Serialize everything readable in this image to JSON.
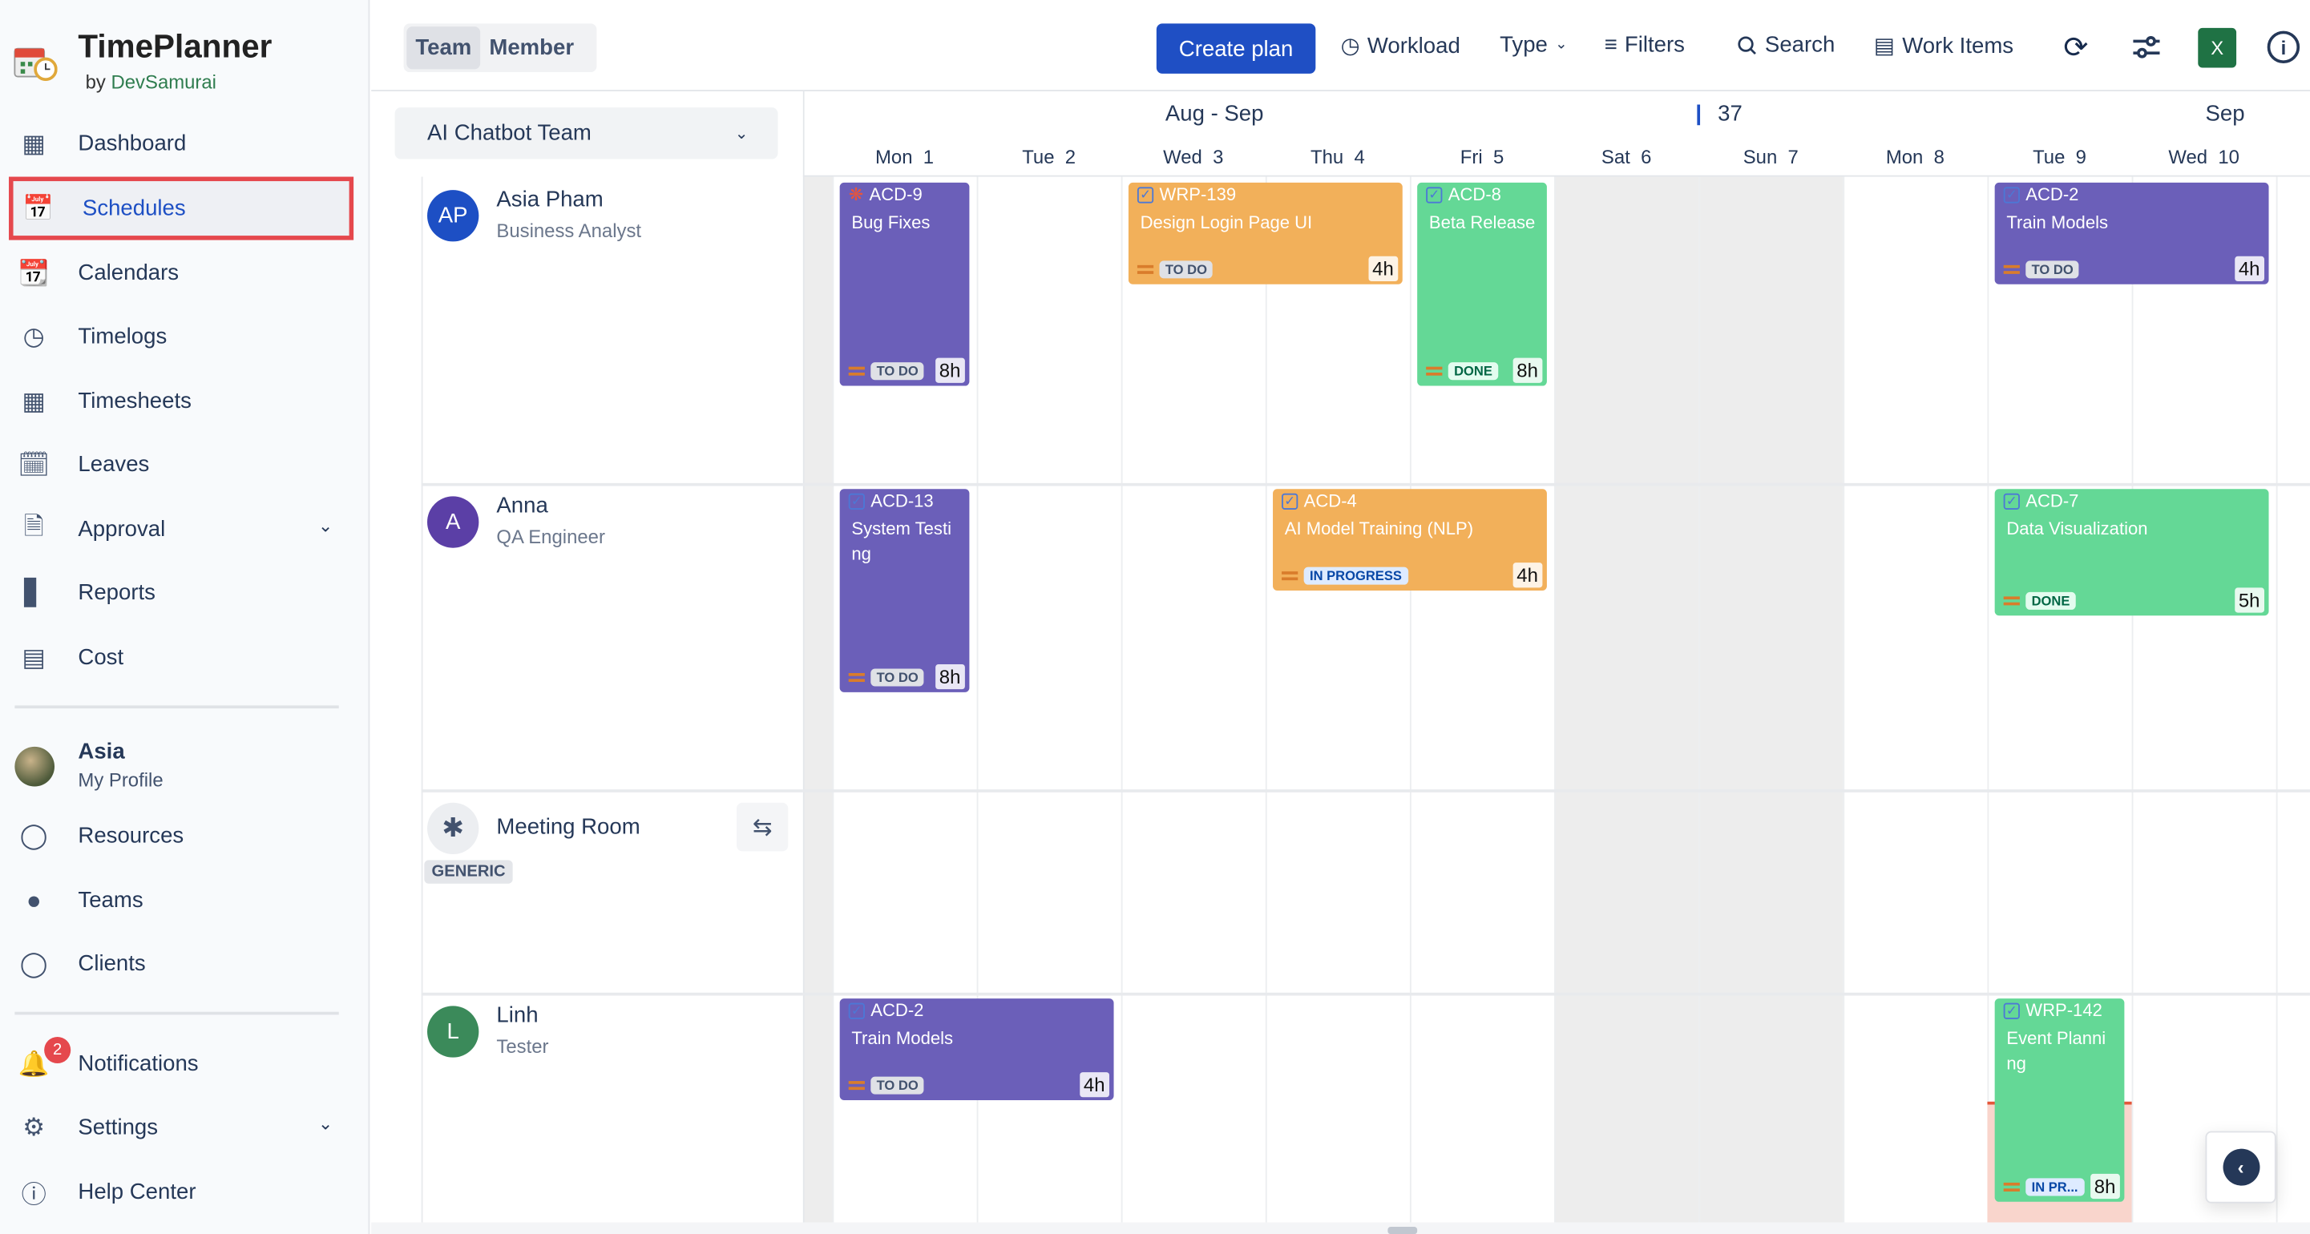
{
  "app": {
    "title": "TimePlanner",
    "by": "by",
    "vendor": "DevSamurai"
  },
  "sidebar": {
    "items": [
      {
        "label": "Dashboard",
        "icon": "dashboard-icon"
      },
      {
        "label": "Schedules",
        "icon": "schedule-icon",
        "active": true
      },
      {
        "label": "Calendars",
        "icon": "calendar-check-icon"
      },
      {
        "label": "Timelogs",
        "icon": "clock-icon"
      },
      {
        "label": "Timesheets",
        "icon": "grid-icon"
      },
      {
        "label": "Leaves",
        "icon": "calendar-minus-icon"
      },
      {
        "label": "Approval",
        "icon": "document-icon",
        "expandable": true
      },
      {
        "label": "Reports",
        "icon": "bar-chart-icon"
      },
      {
        "label": "Cost",
        "icon": "money-icon"
      }
    ],
    "profile": {
      "name": "Asia",
      "sub": "My Profile"
    },
    "items2": [
      {
        "label": "Resources",
        "icon": "person-icon"
      },
      {
        "label": "Teams",
        "icon": "group-icon"
      },
      {
        "label": "Clients",
        "icon": "client-icon"
      }
    ],
    "items3": [
      {
        "label": "Notifications",
        "icon": "bell-icon",
        "badge": "2"
      },
      {
        "label": "Settings",
        "icon": "gear-icon",
        "expandable": true
      },
      {
        "label": "Help Center",
        "icon": "help-icon"
      }
    ]
  },
  "toolbar": {
    "view_toggle": [
      "Team",
      "Member"
    ],
    "active_view": "Team",
    "create": "Create plan",
    "workload": "Workload",
    "type": "Type",
    "filters": "Filters",
    "search": "Search",
    "work_items": "Work Items",
    "excel_color": "#1f7244"
  },
  "team_select": {
    "value": "AI Chatbot Team"
  },
  "calendar": {
    "range_label": "Aug - Sep",
    "week_label": "37",
    "month_right": "Sep",
    "days": [
      {
        "label": "Mon  1",
        "weekend": false
      },
      {
        "label": "Tue  2",
        "weekend": false
      },
      {
        "label": "Wed  3",
        "weekend": false
      },
      {
        "label": "Thu  4",
        "weekend": false
      },
      {
        "label": "Fri  5",
        "weekend": false
      },
      {
        "label": "Sat  6",
        "weekend": true
      },
      {
        "label": "Sun  7",
        "weekend": true
      },
      {
        "label": "Mon  8",
        "weekend": false
      },
      {
        "label": "Tue  9",
        "weekend": false
      },
      {
        "label": "Wed  10",
        "weekend": false
      }
    ]
  },
  "resources": [
    {
      "name": "Asia Pham",
      "role": "Business Analyst",
      "initials": "AP",
      "color": "#1d4fc4"
    },
    {
      "name": "Anna",
      "role": "QA Engineer",
      "initials": "A",
      "color": "#5b3fa6"
    },
    {
      "name": "Meeting Room",
      "role": "",
      "tag": "GENERIC",
      "icon": "puzzle-icon",
      "action_icon": "shuffle-icon"
    },
    {
      "name": "Linh",
      "role": "Tester",
      "initials": "L",
      "color": "#3b8a5a"
    }
  ],
  "status_colors": {
    "TO DO": [
      "#dfe1e6",
      "#42526e"
    ],
    "IN PROGRESS": [
      "#deebff",
      "#0747a6"
    ],
    "IN PR...": [
      "#deebff",
      "#0747a6"
    ],
    "DONE": [
      "#e3fcef",
      "#006644"
    ]
  },
  "plans": [
    {
      "key": "ACD-9",
      "title": "Bug Fixes",
      "status": "TO DO",
      "hours": "8h",
      "h": 8,
      "row": 0,
      "day": 0,
      "span": 1,
      "color": "#6b5fb9",
      "type": "bug-icon"
    },
    {
      "key": "WRP-139",
      "title": "Design Login Page UI",
      "status": "TO DO",
      "hours": "4h",
      "h": 4,
      "row": 0,
      "day": 2,
      "span": 2,
      "color": "#f2b05a",
      "type": "task-icon"
    },
    {
      "key": "ACD-8",
      "title": "Beta Release",
      "status": "DONE",
      "hours": "8h",
      "h": 8,
      "row": 0,
      "day": 4,
      "span": 1,
      "color": "#64d896",
      "type": "task-icon"
    },
    {
      "key": "ACD-2",
      "title": "Train Models",
      "status": "TO DO",
      "hours": "4h",
      "h": 4,
      "row": 0,
      "day": 8,
      "span": 2,
      "color": "#6b5fb9",
      "type": "task-icon"
    },
    {
      "key": "ACD-13",
      "title": "System Testing",
      "status": "TO DO",
      "hours": "8h",
      "h": 8,
      "row": 1,
      "day": 0,
      "span": 1,
      "color": "#6b5fb9",
      "type": "task-icon"
    },
    {
      "key": "ACD-4",
      "title": "AI Model Training (NLP)",
      "status": "IN PROGRESS",
      "hours": "4h",
      "h": 4,
      "row": 1,
      "day": 3,
      "span": 2,
      "color": "#f2b05a",
      "type": "task-icon"
    },
    {
      "key": "ACD-7",
      "title": "Data Visualization",
      "status": "DONE",
      "hours": "5h",
      "h": 5,
      "row": 1,
      "day": 8,
      "span": 2,
      "color": "#64d896",
      "type": "task-icon"
    },
    {
      "key": "ACD-2",
      "title": "Train Models",
      "status": "TO DO",
      "hours": "4h",
      "h": 4,
      "row": 3,
      "day": 0,
      "span": 2,
      "color": "#6b5fb9",
      "type": "task-icon"
    },
    {
      "key": "WRP-142",
      "title": "Event Planning",
      "status": "IN PR...",
      "hours": "8h",
      "h": 8,
      "row": 3,
      "day": 8,
      "span": 1,
      "color": "#64d896",
      "type": "task-icon",
      "overload": true
    }
  ]
}
